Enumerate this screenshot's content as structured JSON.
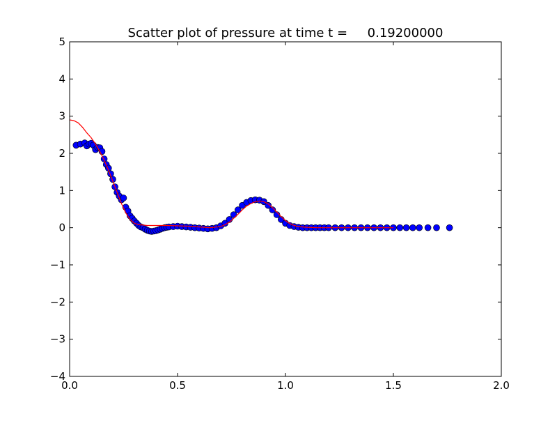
{
  "chart_data": {
    "type": "scatter",
    "title": "Scatter plot of pressure at time t =     0.19200000",
    "xlabel": "",
    "ylabel": "",
    "xlim": [
      0.0,
      2.0
    ],
    "ylim": [
      -4,
      5
    ],
    "x_ticks": [
      0.0,
      0.5,
      1.0,
      1.5,
      2.0
    ],
    "x_tick_labels": [
      "0.0",
      "0.5",
      "1.0",
      "1.5",
      "2.0"
    ],
    "y_ticks": [
      -4,
      -3,
      -2,
      -1,
      0,
      1,
      2,
      3,
      4,
      5
    ],
    "y_tick_labels": [
      "−4",
      "−3",
      "−2",
      "−1",
      "0",
      "1",
      "2",
      "3",
      "4",
      "5"
    ],
    "grid": false,
    "colors": {
      "scatter": "#0000ff",
      "line": "#ff0000"
    },
    "series": [
      {
        "kind": "scatter",
        "color": "#0000ff",
        "x": [
          0.03,
          0.05,
          0.07,
          0.08,
          0.09,
          0.1,
          0.11,
          0.12,
          0.13,
          0.14,
          0.15,
          0.16,
          0.17,
          0.18,
          0.19,
          0.2,
          0.21,
          0.22,
          0.23,
          0.24,
          0.25,
          0.26,
          0.27,
          0.28,
          0.29,
          0.3,
          0.31,
          0.32,
          0.33,
          0.34,
          0.35,
          0.36,
          0.37,
          0.38,
          0.39,
          0.4,
          0.41,
          0.42,
          0.43,
          0.44,
          0.45,
          0.46,
          0.48,
          0.5,
          0.52,
          0.54,
          0.56,
          0.58,
          0.6,
          0.62,
          0.64,
          0.66,
          0.68,
          0.7,
          0.72,
          0.74,
          0.76,
          0.78,
          0.8,
          0.82,
          0.84,
          0.86,
          0.88,
          0.9,
          0.92,
          0.94,
          0.96,
          0.98,
          1.0,
          1.02,
          1.04,
          1.06,
          1.08,
          1.1,
          1.12,
          1.14,
          1.16,
          1.18,
          1.2,
          1.23,
          1.26,
          1.29,
          1.32,
          1.35,
          1.38,
          1.41,
          1.44,
          1.47,
          1.5,
          1.53,
          1.56,
          1.59,
          1.62,
          1.66,
          1.7,
          1.76
        ],
        "y": [
          2.22,
          2.25,
          2.28,
          2.2,
          2.25,
          2.27,
          2.22,
          2.1,
          2.16,
          2.15,
          2.05,
          1.85,
          1.7,
          1.6,
          1.45,
          1.3,
          1.1,
          0.95,
          0.85,
          0.75,
          0.8,
          0.55,
          0.45,
          0.32,
          0.25,
          0.18,
          0.12,
          0.06,
          0.02,
          0.0,
          -0.04,
          -0.07,
          -0.09,
          -0.1,
          -0.09,
          -0.08,
          -0.06,
          -0.04,
          -0.02,
          0.0,
          0.01,
          0.02,
          0.03,
          0.04,
          0.03,
          0.02,
          0.01,
          0.0,
          -0.01,
          -0.02,
          -0.03,
          -0.02,
          0.0,
          0.05,
          0.12,
          0.22,
          0.35,
          0.48,
          0.6,
          0.68,
          0.73,
          0.75,
          0.74,
          0.7,
          0.6,
          0.48,
          0.35,
          0.22,
          0.12,
          0.06,
          0.03,
          0.01,
          0.0,
          0.0,
          0.0,
          0.0,
          0.0,
          0.0,
          0.0,
          0.0,
          0.0,
          0.0,
          0.0,
          0.0,
          0.0,
          0.0,
          0.0,
          0.0,
          0.0,
          0.0,
          0.0,
          0.0,
          0.0,
          0.0,
          0.0,
          0.0
        ]
      },
      {
        "kind": "line",
        "color": "#ff0000",
        "x": [
          0.0,
          0.02,
          0.04,
          0.06,
          0.08,
          0.1,
          0.12,
          0.14,
          0.16,
          0.18,
          0.2,
          0.22,
          0.24,
          0.26,
          0.28,
          0.3,
          0.32,
          0.34,
          0.36,
          0.38,
          0.4,
          0.45,
          0.5,
          0.55,
          0.6,
          0.65,
          0.7,
          0.72,
          0.74,
          0.76,
          0.78,
          0.8,
          0.82,
          0.84,
          0.86,
          0.88,
          0.9,
          0.92,
          0.94,
          0.96,
          0.98,
          1.0,
          1.02,
          1.04,
          1.06,
          1.08,
          1.1,
          1.15,
          1.2,
          1.3,
          1.4,
          1.5
        ],
        "y": [
          2.9,
          2.88,
          2.82,
          2.7,
          2.55,
          2.42,
          2.25,
          2.05,
          1.82,
          1.55,
          1.25,
          0.95,
          0.65,
          0.4,
          0.22,
          0.12,
          0.08,
          0.07,
          0.06,
          0.06,
          0.06,
          0.06,
          0.05,
          0.04,
          0.02,
          0.0,
          0.03,
          0.08,
          0.15,
          0.25,
          0.36,
          0.48,
          0.58,
          0.65,
          0.7,
          0.72,
          0.7,
          0.64,
          0.54,
          0.42,
          0.3,
          0.19,
          0.11,
          0.06,
          0.03,
          0.02,
          0.01,
          0.0,
          0.0,
          0.0,
          0.0,
          0.0
        ]
      }
    ]
  }
}
